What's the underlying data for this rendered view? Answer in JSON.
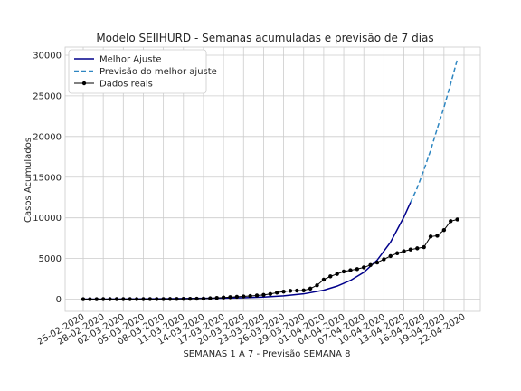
{
  "chart_data": {
    "type": "line",
    "title": "Modelo SEIIHURD - Semanas acumuladas e previsão de 7 dias",
    "xlabel": "SEMANAS 1 A 7 - Previsão SEMANA 8",
    "ylabel": "Casos Acumulados",
    "ylim": [
      -1500,
      31000
    ],
    "yticks": [
      0,
      5000,
      10000,
      15000,
      20000,
      25000,
      30000
    ],
    "xticks": [
      "25-02-2020",
      "28-02-2020",
      "02-03-2020",
      "05-03-2020",
      "08-03-2020",
      "11-03-2020",
      "14-03-2020",
      "17-03-2020",
      "20-03-2020",
      "23-03-2020",
      "26-03-2020",
      "29-03-2020",
      "01-04-2020",
      "04-04-2020",
      "07-04-2020",
      "10-04-2020",
      "13-04-2020",
      "16-04-2020",
      "19-04-2020",
      "22-04-2020"
    ],
    "x_start": "2020-02-25",
    "x_end": "2020-04-22",
    "grid": true,
    "legend_position": "top-left",
    "series": [
      {
        "name": "Melhor Ajuste",
        "color": "#00008b",
        "style": "solid",
        "x": [
          "2020-02-25",
          "2020-02-28",
          "2020-03-02",
          "2020-03-05",
          "2020-03-08",
          "2020-03-11",
          "2020-03-14",
          "2020-03-17",
          "2020-03-20",
          "2020-03-23",
          "2020-03-26",
          "2020-03-29",
          "2020-04-01",
          "2020-04-03",
          "2020-04-05",
          "2020-04-07",
          "2020-04-09",
          "2020-04-11",
          "2020-04-13",
          "2020-04-14"
        ],
        "y": [
          0,
          5,
          15,
          30,
          50,
          70,
          95,
          125,
          170,
          250,
          400,
          650,
          1100,
          1600,
          2300,
          3300,
          4800,
          7000,
          10100,
          11900
        ]
      },
      {
        "name": "Previsão do melhor ajuste",
        "color": "#2e86c1",
        "style": "dashed",
        "x": [
          "2020-04-14",
          "2020-04-15",
          "2020-04-16",
          "2020-04-17",
          "2020-04-18",
          "2020-04-19",
          "2020-04-20",
          "2020-04-21"
        ],
        "y": [
          11900,
          13700,
          15900,
          18300,
          21000,
          23600,
          26500,
          29500
        ]
      },
      {
        "name": "Dados reais",
        "color": "#000000",
        "style": "solid-markers",
        "x": [
          "2020-02-25",
          "2020-02-26",
          "2020-02-27",
          "2020-02-28",
          "2020-02-29",
          "2020-03-01",
          "2020-03-02",
          "2020-03-03",
          "2020-03-04",
          "2020-03-05",
          "2020-03-06",
          "2020-03-07",
          "2020-03-08",
          "2020-03-09",
          "2020-03-10",
          "2020-03-11",
          "2020-03-12",
          "2020-03-13",
          "2020-03-14",
          "2020-03-15",
          "2020-03-16",
          "2020-03-17",
          "2020-03-18",
          "2020-03-19",
          "2020-03-20",
          "2020-03-21",
          "2020-03-22",
          "2020-03-23",
          "2020-03-24",
          "2020-03-25",
          "2020-03-26",
          "2020-03-27",
          "2020-03-28",
          "2020-03-29",
          "2020-03-30",
          "2020-03-31",
          "2020-04-01",
          "2020-04-02",
          "2020-04-03",
          "2020-04-04",
          "2020-04-05",
          "2020-04-06",
          "2020-04-07",
          "2020-04-08",
          "2020-04-09",
          "2020-04-10",
          "2020-04-11",
          "2020-04-12",
          "2020-04-13",
          "2020-04-14",
          "2020-04-15",
          "2020-04-16",
          "2020-04-17",
          "2020-04-18",
          "2020-04-19",
          "2020-04-20",
          "2020-04-21"
        ],
        "y": [
          1,
          1,
          1,
          2,
          2,
          2,
          2,
          2,
          3,
          3,
          5,
          6,
          10,
          16,
          19,
          30,
          42,
          56,
          65,
          100,
          150,
          200,
          240,
          290,
          330,
          390,
          450,
          520,
          640,
          800,
          930,
          1020,
          1050,
          1080,
          1300,
          1700,
          2400,
          2800,
          3100,
          3400,
          3550,
          3700,
          3900,
          4200,
          4500,
          4900,
          5300,
          5650,
          5900,
          6100,
          6250,
          6400,
          7700,
          7800,
          8500,
          9600,
          9800
        ]
      }
    ]
  }
}
